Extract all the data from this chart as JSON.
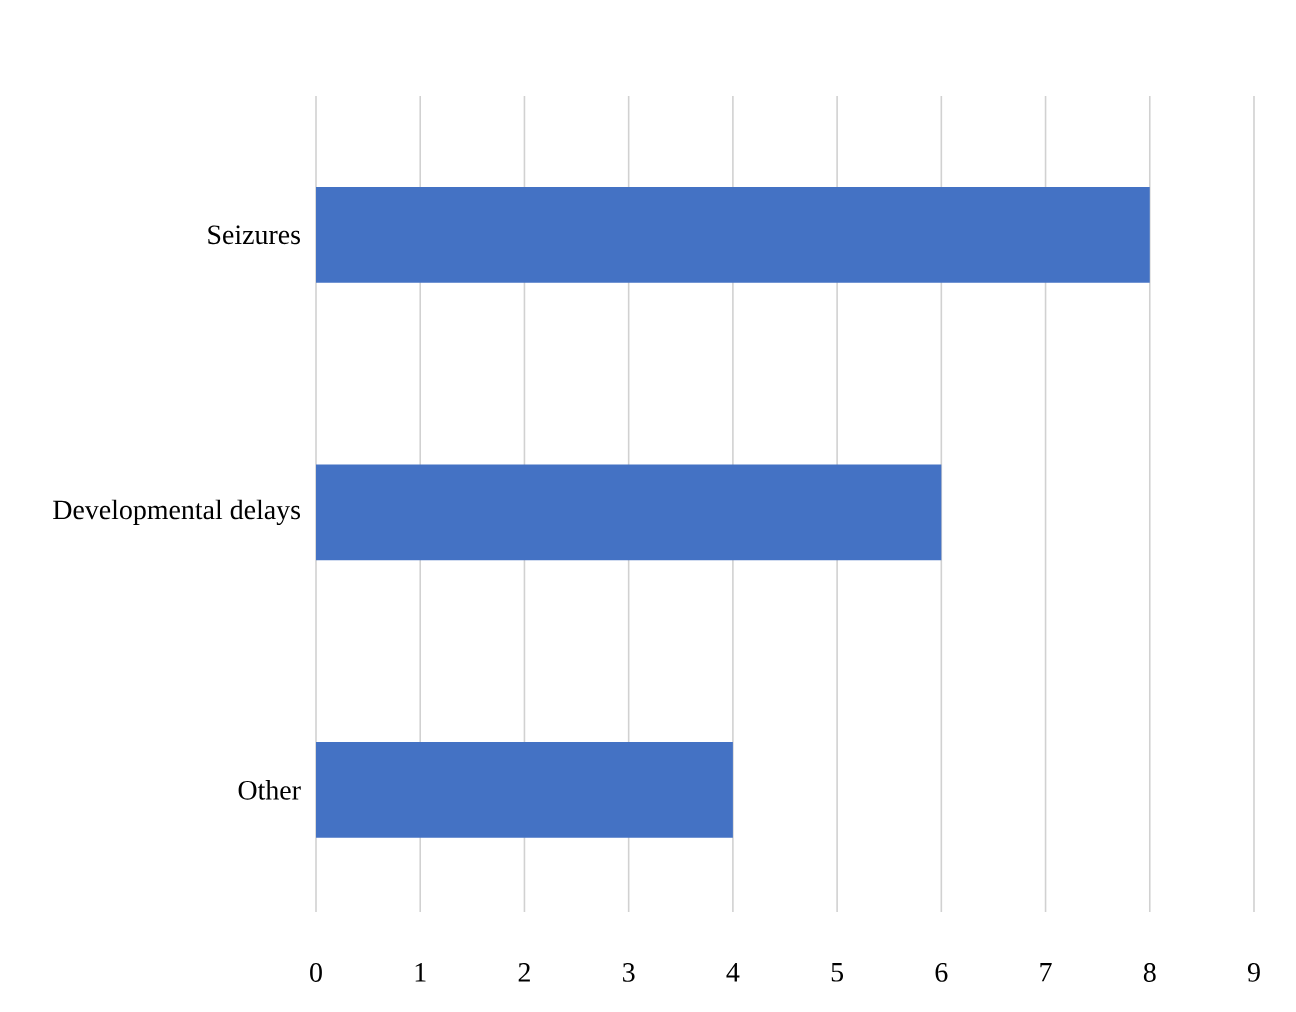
{
  "chart_data": {
    "type": "bar",
    "orientation": "horizontal",
    "categories": [
      "Seizures",
      "Developmental delays",
      "Other"
    ],
    "values": [
      8,
      6,
      4
    ],
    "color": "#4472c4",
    "xlim": [
      0,
      9
    ],
    "xticks": [
      0,
      1,
      2,
      3,
      4,
      5,
      6,
      7,
      8,
      9
    ],
    "grid": "x"
  }
}
